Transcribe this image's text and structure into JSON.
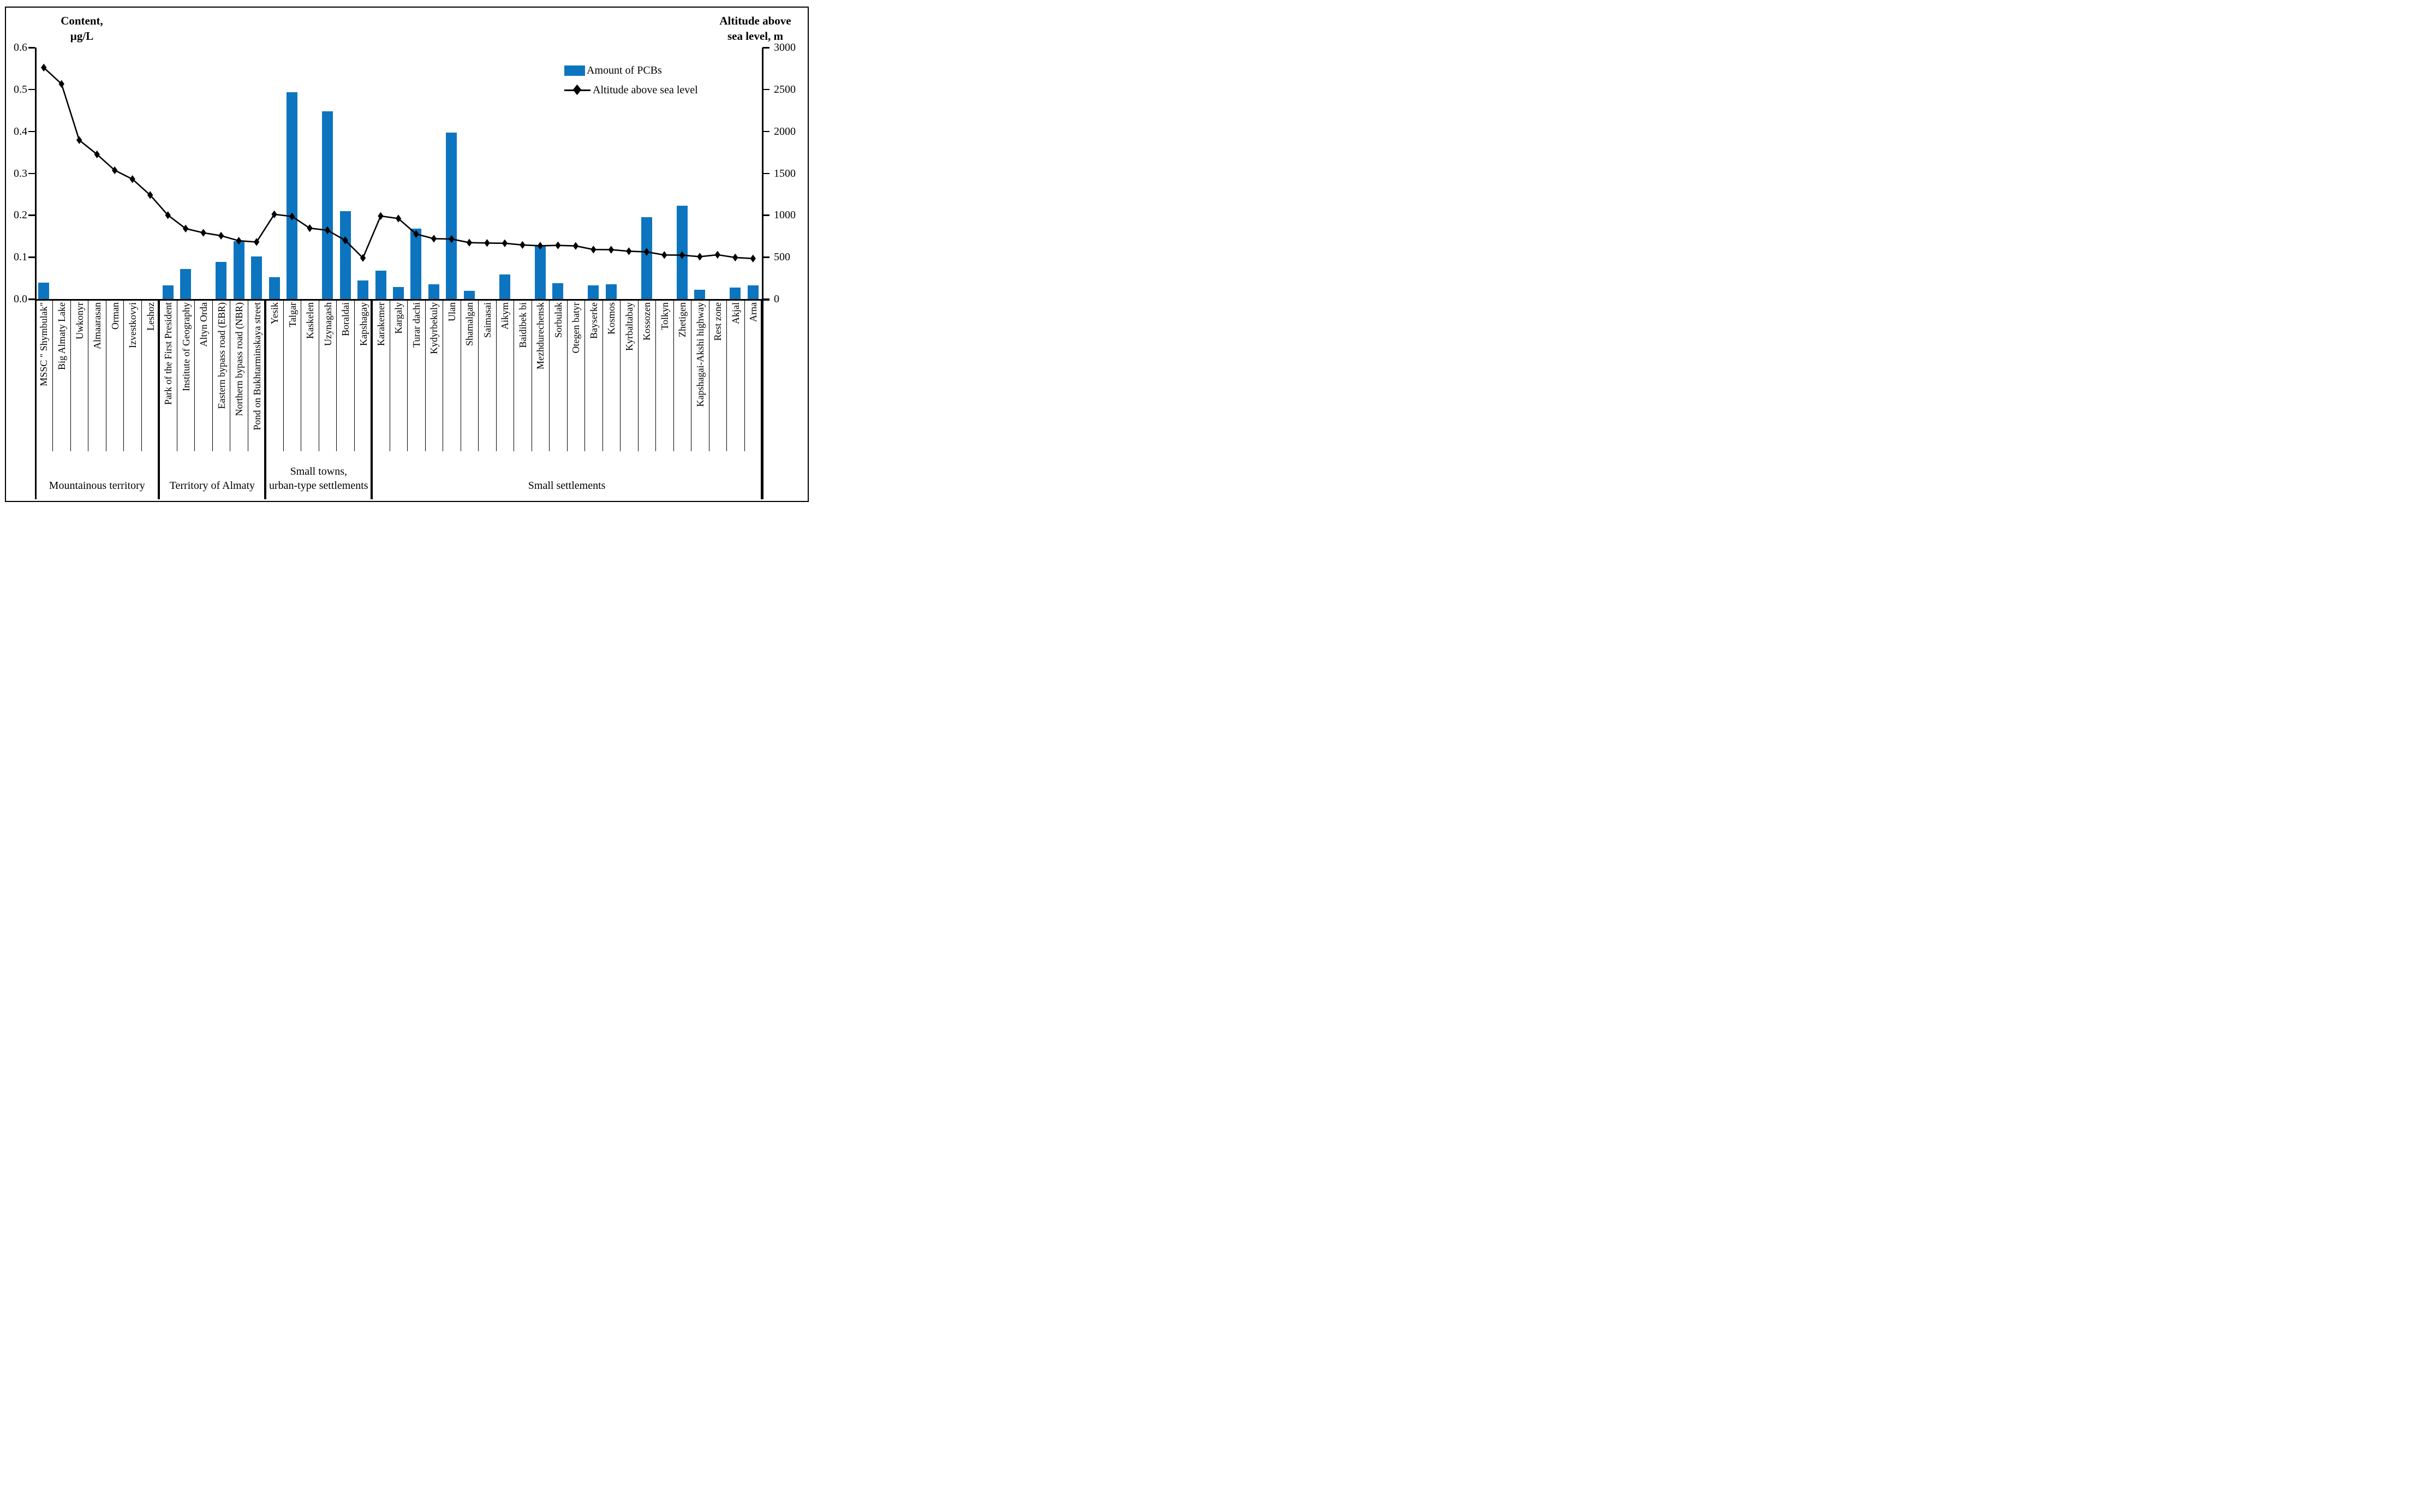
{
  "figure": {
    "titles": {
      "left_line1": "Content,",
      "left_line2": "µg/L",
      "right_line1": "Altitude above",
      "right_line2": "sea level, m"
    },
    "legend": {
      "bar_label": "Amount of PCBs",
      "line_label": "Altitude above  sea level"
    }
  },
  "colors": {
    "bar": "#0d75bf",
    "line": "#000000",
    "text": "#000000",
    "background": "#ffffff"
  },
  "chart_data": {
    "type": "bar+line",
    "grid": false,
    "legend_position": "top-right",
    "categories": [
      "MSSC \" Shymbulak\"",
      "Big Almaty Lake",
      "Uwkonyr",
      "Almaarasan",
      "Orman",
      "Izvestkovyi",
      "Leshoz",
      "Park of the First President",
      "Institute of Geography",
      "Altyn Orda",
      "Eastern bypass road (EBR)",
      "Northern bypass road (NBR)",
      "Pond on Bukhtarminskaya street",
      "Yesik",
      "Talgar",
      "Kaskelen",
      "Uzynagash",
      "Boraldai",
      "Kapshagay",
      "Karakemer",
      "Kargaly",
      "Turar dachi",
      "Kydyrbekuly",
      "Ulan",
      "Shamalgan",
      "Saimasai",
      "Aikym",
      "Baidibek bi",
      "Mezhdurechensk",
      "Sorbulak",
      "Otegen batyr",
      "Bayserke",
      "Kosmos",
      "Kyrbaltabay",
      "Kossozen",
      "Tolkyn",
      "Zhetigen",
      "Kapshagai-Akshi highway",
      "Rest zone",
      "Akjal",
      "Arna"
    ],
    "series": [
      {
        "name": "Amount of PCBs",
        "type": "bar",
        "axis": "left",
        "unit": "µg/L",
        "values": [
          0.039,
          0,
          0,
          0,
          0,
          0,
          0,
          0.032,
          0.072,
          0,
          0.089,
          0.138,
          0.101,
          0.052,
          0.493,
          0,
          0.448,
          0.21,
          0.044,
          0.068,
          0.028,
          0.168,
          0.035,
          0.397,
          0.019,
          0,
          0.058,
          0,
          0.127,
          0.038,
          0,
          0.033,
          0.035,
          0,
          0.195,
          0,
          0.223,
          0.022,
          0,
          0.027,
          0.033
        ]
      },
      {
        "name": "Altitude above sea level",
        "type": "line",
        "axis": "right",
        "unit": "m",
        "values": [
          2760,
          2565,
          1895,
          1725,
          1535,
          1430,
          1240,
          1000,
          840,
          790,
          755,
          695,
          680,
          1010,
          985,
          845,
          820,
          700,
          490,
          990,
          960,
          775,
          720,
          715,
          672,
          668,
          665,
          645,
          635,
          640,
          633,
          590,
          588,
          570,
          562,
          525,
          523,
          505,
          528,
          495,
          483
        ]
      }
    ],
    "groups": [
      {
        "label": "Mountainous territory",
        "lines": [
          "Mountainous territory"
        ],
        "span": 7
      },
      {
        "label": "Territory of Almaty",
        "lines": [
          "Territory of Almaty"
        ],
        "span": 6
      },
      {
        "label": "Small towns, urban-type settlements",
        "lines": [
          "Small towns,",
          "urban-type settlements"
        ],
        "span": 6
      },
      {
        "label": "Small settlements",
        "lines": [
          "Small settlements"
        ],
        "span": 22
      }
    ],
    "left_axis": {
      "label": "Content, µg/L",
      "min": 0.0,
      "max": 0.6,
      "ticks": [
        "0.0",
        "0.1",
        "0.2",
        "0.3",
        "0.4",
        "0.5",
        "0.6"
      ]
    },
    "right_axis": {
      "label": "Altitude above sea level, m",
      "min": 0,
      "max": 3000,
      "ticks": [
        "0",
        "500",
        "1000",
        "1500",
        "2000",
        "2500",
        "3000"
      ]
    }
  }
}
